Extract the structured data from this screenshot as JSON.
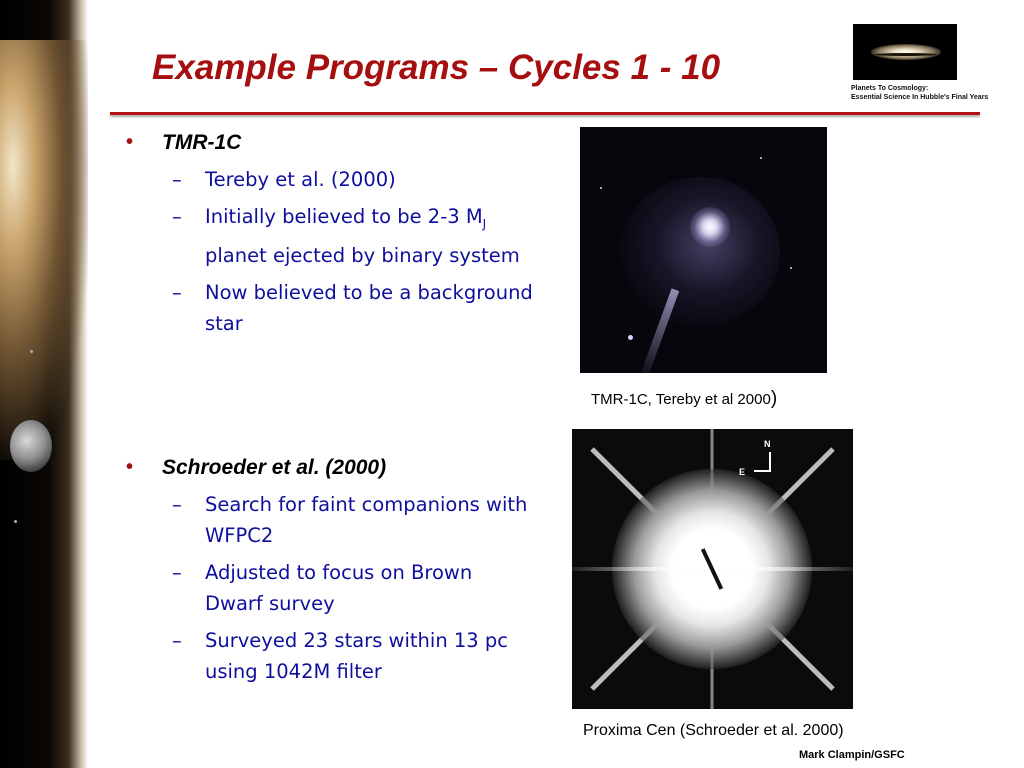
{
  "slide": {
    "title": "Example Programs – Cycles 1 - 10",
    "footer": "Mark Clampin/GSFC"
  },
  "logo": {
    "line1": "Planets To Cosmology:",
    "line2": "Essential Science In Hubble's Final Years"
  },
  "section1": {
    "bullet": "•",
    "heading": "TMR-1C",
    "items": [
      {
        "dash": "–",
        "text": "Tereby et al.  (2000)"
      },
      {
        "dash": "–",
        "text_before": "Initially believed to be 2-3 M",
        "subscript": "J",
        "text_after": " planet ejected by binary system"
      },
      {
        "dash": "–",
        "text": "Now believed to be a background star"
      }
    ]
  },
  "section2": {
    "bullet": "•",
    "heading": "Schroeder et al. (2000)",
    "items": [
      {
        "dash": "–",
        "text": "Search for faint companions with WFPC2"
      },
      {
        "dash": "–",
        "text": "Adjusted to focus on Brown Dwarf survey"
      },
      {
        "dash": "–",
        "text": "Surveyed 23 stars within 13 pc using 1042M filter"
      }
    ]
  },
  "images": {
    "tmr": {
      "caption_text": "TMR-1C,  Tereby et al 2000",
      "caption_paren": ")"
    },
    "proxima": {
      "caption": "Proxima Cen (Schroeder et al. 2000)",
      "label_north": "N",
      "label_east": "E"
    }
  }
}
